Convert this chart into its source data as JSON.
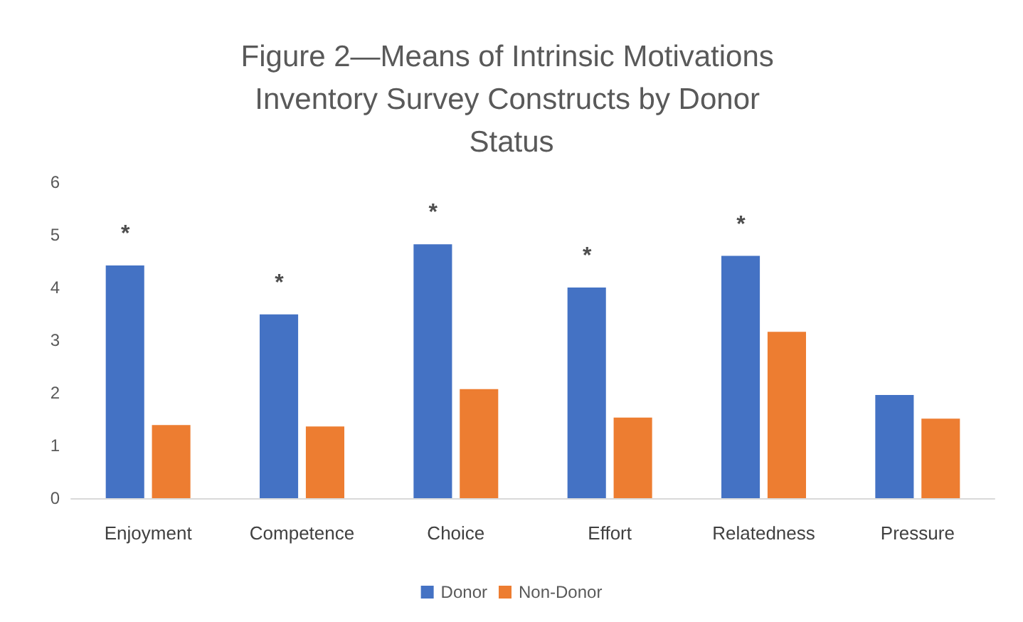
{
  "chart_data": {
    "type": "bar",
    "title": "Figure 2—Means of Intrinsic Motivations Inventory Survey Constructs by Donor Status",
    "categories": [
      "Enjoyment",
      "Competence",
      "Choice",
      "Effort",
      "Relatedness",
      "Pressure"
    ],
    "series": [
      {
        "name": "Donor",
        "color": "#4472c4",
        "values": [
          4.42,
          3.49,
          4.82,
          4.0,
          4.6,
          1.96
        ]
      },
      {
        "name": "Non-Donor",
        "color": "#ed7d31",
        "values": [
          1.39,
          1.36,
          2.07,
          1.53,
          3.16,
          1.51
        ]
      }
    ],
    "ylim": [
      0,
      6
    ],
    "yticks": [
      0,
      1,
      2,
      3,
      4,
      5,
      6
    ],
    "grid": false,
    "legend": "bottom",
    "annotations": [
      {
        "text": "*",
        "x": "Enjoyment",
        "y": 4.42
      },
      {
        "text": "*",
        "x": "Competence",
        "y": 3.49
      },
      {
        "text": "*",
        "x": "Choice",
        "y": 4.82
      },
      {
        "text": "*",
        "x": "Effort",
        "y": 4.0
      },
      {
        "text": "*",
        "x": "Relatedness",
        "y": 4.6
      }
    ]
  }
}
